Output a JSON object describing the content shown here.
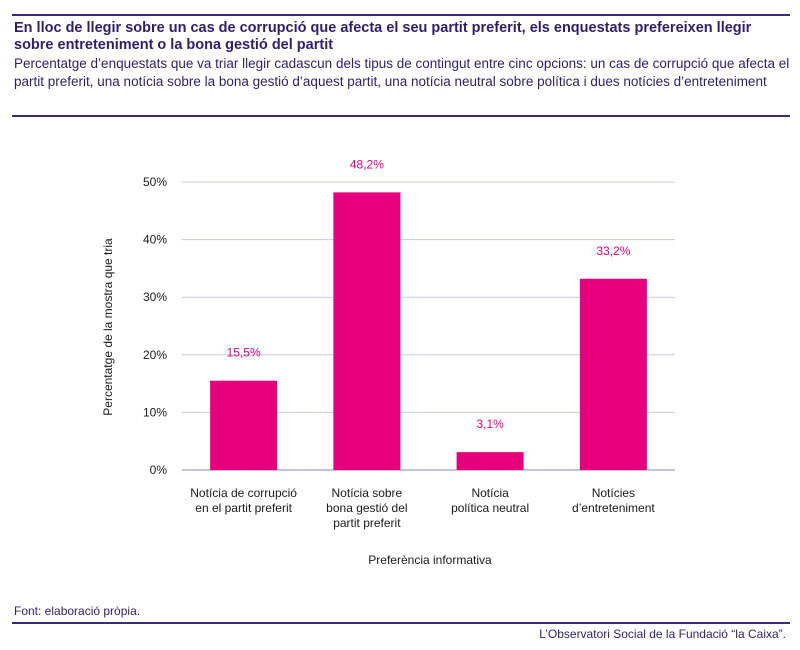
{
  "header": {
    "title": "En lloc de llegir sobre un cas de corrupció que afecta el seu partit preferit, els enquestats prefereixen llegir sobre entreteniment o la bona gestió del partit",
    "subtitle": "Percentatge d’enquestats que va triar llegir cadascun dels tipus de contingut entre cinc opcions: un cas de corrupció que afecta el partit preferit, una notícia sobre la bona gestió d’aquest partit, una notícia neutral sobre política i dues notícies d’entreteniment"
  },
  "chart_data": {
    "type": "bar",
    "categories": [
      [
        "Notícia de corrupció",
        "en el partit preferit"
      ],
      [
        "Notícia sobre",
        "bona gestió del",
        "partit preferit"
      ],
      [
        "Notícia",
        "política neutral"
      ],
      [
        "Notícies",
        "d’entreteniment"
      ]
    ],
    "values": [
      15.5,
      48.2,
      3.1,
      33.2
    ],
    "data_labels": [
      "15,5%",
      "48,2%",
      "3,1%",
      "33,2%"
    ],
    "xlabel": "Preferència informativa",
    "ylabel": "Percentatge de la mostra que tria",
    "ylim": [
      0,
      50
    ],
    "yticks": [
      0,
      10,
      20,
      30,
      40,
      50
    ],
    "ytick_labels": [
      "0%",
      "10%",
      "20%",
      "30%",
      "40%",
      "50%"
    ],
    "grid": true,
    "colors": {
      "bar": "#e6007e",
      "label": "#e6007e",
      "grid": "#c8c8dc",
      "text": "#1a1a1a"
    }
  },
  "footer": {
    "source": "Font: elaboració pròpia.",
    "credit": "L’Observatori Social de la Fundació “la Caixa”."
  }
}
